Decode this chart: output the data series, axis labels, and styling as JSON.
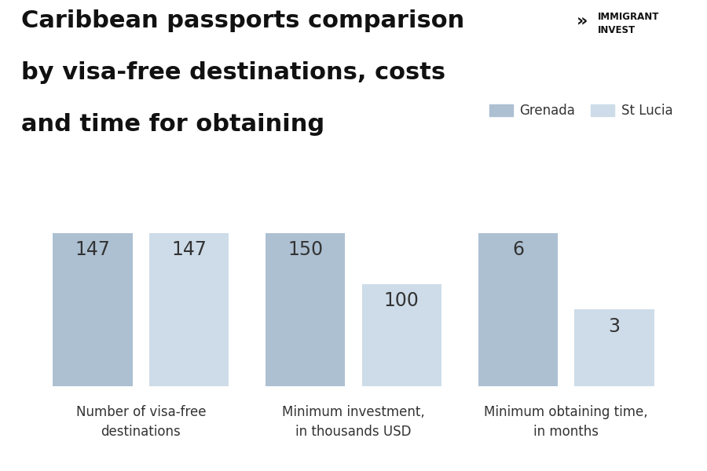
{
  "title_line1": "Caribbean passports comparison",
  "title_line2": "by visa-free destinations, costs",
  "title_line3": "and time for obtaining",
  "categories": [
    "Number of visa-free\ndestinations",
    "Minimum investment,\nin thousands USD",
    "Minimum obtaining time,\nin months"
  ],
  "grenada_values": [
    147,
    150,
    6
  ],
  "stlucia_values": [
    147,
    100,
    3
  ],
  "grenada_color": "#adc0d2",
  "stlucia_color": "#cddce8",
  "background_color": "#ffffff",
  "legend_labels": [
    "Grenada",
    "St Lucia"
  ],
  "bar_width": 0.12,
  "value_fontsize": 17,
  "xlabel_fontsize": 12,
  "title_fontsize": 22,
  "legend_fontsize": 12,
  "label_color": "#333333",
  "title_color": "#111111"
}
